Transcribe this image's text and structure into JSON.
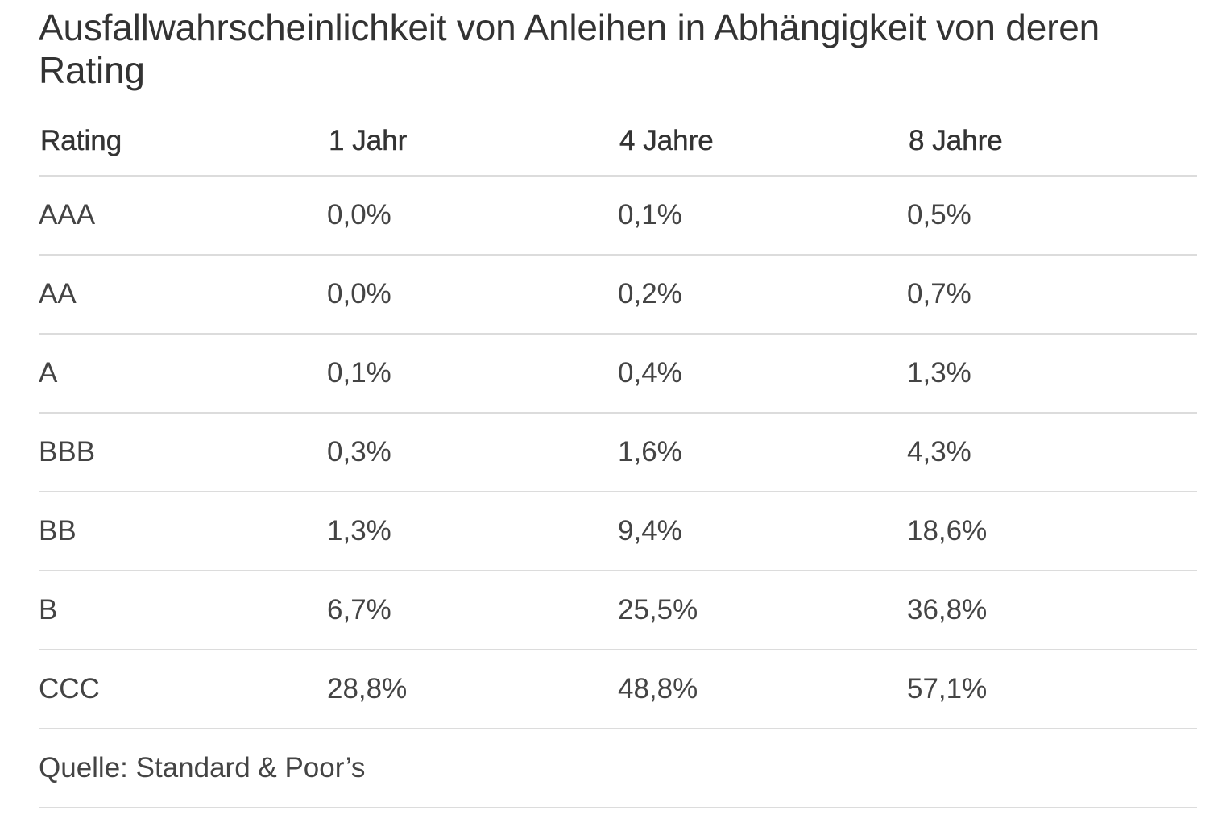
{
  "title": "Ausfallwahrscheinlichkeit von Anleihen in Abhängigkeit von deren Rating",
  "table": {
    "headers": [
      "Rating",
      "1 Jahr",
      "4 Jahre",
      "8 Jahre"
    ],
    "rows": [
      [
        "AAA",
        "0,0%",
        "0,1%",
        "0,5%"
      ],
      [
        "AA",
        "0,0%",
        "0,2%",
        "0,7%"
      ],
      [
        "A",
        "0,1%",
        "0,4%",
        "1,3%"
      ],
      [
        "BBB",
        "0,3%",
        "1,6%",
        "4,3%"
      ],
      [
        "BB",
        "1,3%",
        "9,4%",
        "18,6%"
      ],
      [
        "B",
        "6,7%",
        "25,5%",
        "36,8%"
      ],
      [
        "CCC",
        "28,8%",
        "48,8%",
        "57,1%"
      ]
    ]
  },
  "source": "Quelle: Standard & Poor’s",
  "colors": {
    "text": "#333333",
    "divider": "#dcdcdc",
    "background": "#ffffff"
  }
}
